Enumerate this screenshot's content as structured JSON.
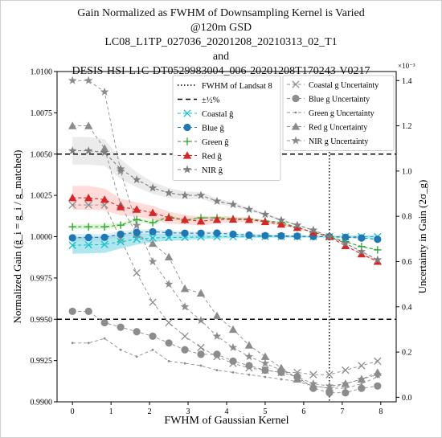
{
  "chart_data": {
    "type": "line",
    "title_lines": [
      "Gain Normalized as FWHM of Downsampling Kernel is Varied",
      "@120m GSD",
      "LC08_L1TP_027036_20201208_20210313_02_T1",
      "and",
      "DESIS-HSI-L1C-DT0529983004_006-20201208T170243-V0217"
    ],
    "xlabel": "FWHM of Gaussian Kernel",
    "ylabel_left": "Normalized Gain (ĝ_i = g_i / g_matched)",
    "ylabel_right": "Uncertainty in Gain (2σ_g)",
    "right_axis_multiplier": "×10⁻³",
    "xlim": [
      -0.4,
      8.4
    ],
    "ylim_left": [
      0.99,
      1.01
    ],
    "ylim_right": [
      -2e-05,
      0.00144
    ],
    "x_ticks": [
      "0",
      "1",
      "2",
      "3",
      "4",
      "5",
      "6",
      "7",
      "8"
    ],
    "y_ticks_left": [
      "0.9900",
      "0.9925",
      "0.9950",
      "0.9975",
      "1.0000",
      "1.0025",
      "1.0050",
      "1.0075",
      "1.0100"
    ],
    "y_ticks_right": [
      "0.0",
      "0.2",
      "0.4",
      "0.6",
      "0.8",
      "1.0",
      "1.2",
      "1.4"
    ],
    "x": [
      0,
      0.417,
      0.833,
      1.25,
      1.667,
      2.083,
      2.5,
      2.917,
      3.333,
      3.75,
      4.167,
      4.583,
      5.0,
      5.417,
      5.833,
      6.25,
      6.667,
      7.083,
      7.5,
      7.917
    ],
    "reference_lines": {
      "fwhm_landsat8": 6.667,
      "upper_half_percent": 1.005,
      "lower_half_percent": 0.995
    },
    "legend_left": [
      {
        "label": "FWHM of Landsat 8",
        "style": "dotted"
      },
      {
        "label": "±½%",
        "style": "dashed"
      },
      {
        "label": "Coastal ĝ",
        "color": "#17becf",
        "marker": "x"
      },
      {
        "label": "Blue ĝ",
        "color": "#1f77b4",
        "marker": "o"
      },
      {
        "label": "Green ĝ",
        "color": "#2ca02c",
        "marker": "+"
      },
      {
        "label": "Red ĝ",
        "color": "#d62728",
        "marker": "^"
      },
      {
        "label": "NIR ĝ",
        "color": "#7f7f7f",
        "marker": "*"
      }
    ],
    "legend_right": [
      {
        "label": "Coastal g Uncertainty",
        "marker": "x"
      },
      {
        "label": "Blue g Uncertainty",
        "marker": "o"
      },
      {
        "label": "Green g Uncertainty",
        "marker": "."
      },
      {
        "label": "Red g Uncertainty",
        "marker": "^"
      },
      {
        "label": "NIR g Uncertainty",
        "marker": "*"
      }
    ],
    "series": [
      {
        "name": "Coastal ĝ",
        "color": "#17becf",
        "marker": "x",
        "axis": "left",
        "values": [
          0.99948,
          0.9995,
          0.99953,
          0.9997,
          0.99985,
          0.99992,
          0.99995,
          0.99996,
          0.99998,
          0.99999,
          1.0,
          1.0,
          1.00001,
          1.00001,
          1.0,
          1.0,
          1.0,
          1.0,
          1.0,
          1.0
        ]
      },
      {
        "name": "Blue ĝ",
        "color": "#1f77b4",
        "marker": "o",
        "axis": "left",
        "values": [
          0.99993,
          0.99995,
          0.99996,
          1.00015,
          1.00026,
          1.0003,
          1.00024,
          1.00021,
          1.00021,
          1.00022,
          1.00015,
          1.0001,
          1.00006,
          1.00005,
          1.00003,
          1.00001,
          1.0,
          0.99996,
          0.99992,
          0.99984
        ]
      },
      {
        "name": "Green ĝ",
        "color": "#2ca02c",
        "marker": "+",
        "axis": "left",
        "values": [
          1.0006,
          1.0006,
          1.0006,
          1.0007,
          1.00103,
          1.00085,
          1.0012,
          1.001,
          1.00114,
          1.00114,
          1.00108,
          1.00107,
          1.00095,
          1.00087,
          1.00055,
          1.00027,
          1.0,
          0.9997,
          0.9994,
          0.9992
        ]
      },
      {
        "name": "Red ĝ",
        "color": "#d62728",
        "marker": "^",
        "axis": "left",
        "values": [
          1.00235,
          1.00235,
          1.00225,
          1.0018,
          1.00165,
          1.00145,
          1.00115,
          1.00103,
          1.00094,
          1.00103,
          1.00105,
          1.00103,
          1.0009,
          1.00075,
          1.00055,
          1.00027,
          1.0,
          0.99945,
          0.99895,
          0.9985
        ]
      },
      {
        "name": "NIR ĝ",
        "color": "#7f7f7f",
        "marker": "*",
        "axis": "left",
        "values": [
          1.0052,
          1.0052,
          1.0051,
          1.0041,
          1.00345,
          1.00295,
          1.00265,
          1.0025,
          1.0025,
          1.00215,
          1.00195,
          1.00165,
          1.00135,
          1.001,
          1.0007,
          1.0004,
          1.0,
          0.9996,
          0.9991,
          0.9986
        ]
      },
      {
        "name": "Coastal g Uncertainty",
        "color": "#8c8c8c",
        "marker": "x",
        "axis": "right",
        "values": [
          0.00085,
          0.00085,
          0.00085,
          0.0007,
          0.00055,
          0.00042,
          0.00033,
          0.00027,
          0.00022,
          0.00018,
          0.00015,
          0.00013,
          0.00012,
          0.00011,
          0.00011,
          0.0001,
          0.0001,
          0.00012,
          0.00014,
          0.00016
        ]
      },
      {
        "name": "Blue g Uncertainty",
        "color": "#8c8c8c",
        "marker": "o",
        "axis": "right",
        "values": [
          0.00038,
          0.00038,
          0.00033,
          0.00031,
          0.00029,
          0.00027,
          0.00024,
          0.00021,
          0.00019,
          0.00019,
          0.00016,
          0.00014,
          0.00012,
          0.00011,
          9e-05,
          4e-05,
          2e-05,
          2e-05,
          4e-05,
          5e-05
        ]
      },
      {
        "name": "Green g Uncertainty",
        "color": "#8c8c8c",
        "marker": ".",
        "axis": "right",
        "values": [
          0.00024,
          0.00024,
          0.00026,
          0.00021,
          0.00018,
          0.00021,
          0.00016,
          0.00015,
          0.00014,
          0.00012,
          0.00011,
          0.0001,
          9e-05,
          8e-05,
          7e-05,
          5e-05,
          4e-05,
          4e-05,
          6e-05,
          9e-05
        ]
      },
      {
        "name": "Red g Uncertainty",
        "color": "#8c8c8c",
        "marker": "^",
        "axis": "right",
        "values": [
          0.0012,
          0.0012,
          0.0011,
          0.00085,
          0.00072,
          0.00068,
          0.00062,
          0.00048,
          0.00046,
          0.00036,
          0.0003,
          0.00023,
          0.00018,
          0.00013,
          8e-05,
          5e-05,
          4e-05,
          6e-05,
          8e-05,
          0.00011
        ]
      },
      {
        "name": "NIR g Uncertainty",
        "color": "#8c8c8c",
        "marker": "*",
        "axis": "right",
        "values": [
          0.0014,
          0.0014,
          0.00135,
          0.001,
          0.00076,
          0.0006,
          0.0005,
          0.0004,
          0.00034,
          0.00027,
          0.00022,
          0.00018,
          0.00015,
          0.00012,
          9e-05,
          6e-05,
          5e-05,
          6e-05,
          8e-05,
          0.0001
        ]
      }
    ]
  }
}
